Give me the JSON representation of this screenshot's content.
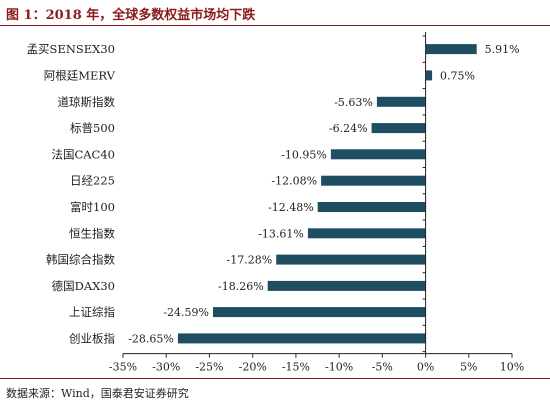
{
  "figure": {
    "title": "图 1：2018 年，全球多数权益市场均下跌",
    "source": "数据来源：Wind，国泰君安证券研究"
  },
  "chart_data": {
    "type": "bar",
    "orientation": "horizontal",
    "title": "",
    "xlabel": "",
    "ylabel": "",
    "categories": [
      "孟买SENSEX30",
      "阿根廷MERV",
      "道琼斯指数",
      "标普500",
      "法国CAC40",
      "日经225",
      "富时100",
      "恒生指数",
      "韩国综合指数",
      "德国DAX30",
      "上证综指",
      "创业板指"
    ],
    "values": [
      5.91,
      0.75,
      -5.63,
      -6.24,
      -10.95,
      -12.08,
      -12.48,
      -13.61,
      -17.28,
      -18.26,
      -24.59,
      -28.65
    ],
    "data_labels": [
      "5.91%",
      "0.75%",
      "-5.63%",
      "-6.24%",
      "-10.95%",
      "-12.08%",
      "-12.48%",
      "-13.61%",
      "-17.28%",
      "-18.26%",
      "-24.59%",
      "-28.65%"
    ],
    "xlim": [
      -35,
      10
    ],
    "xticks": [
      -35,
      -30,
      -25,
      -20,
      -15,
      -10,
      -5,
      0,
      5,
      10
    ],
    "xtick_labels": [
      "-35%",
      "-30%",
      "-25%",
      "-20%",
      "-15%",
      "-10%",
      "-5%",
      "0%",
      "5%",
      "10%"
    ],
    "bar_color": "#1f4e63",
    "grid": false,
    "legend": "none"
  }
}
